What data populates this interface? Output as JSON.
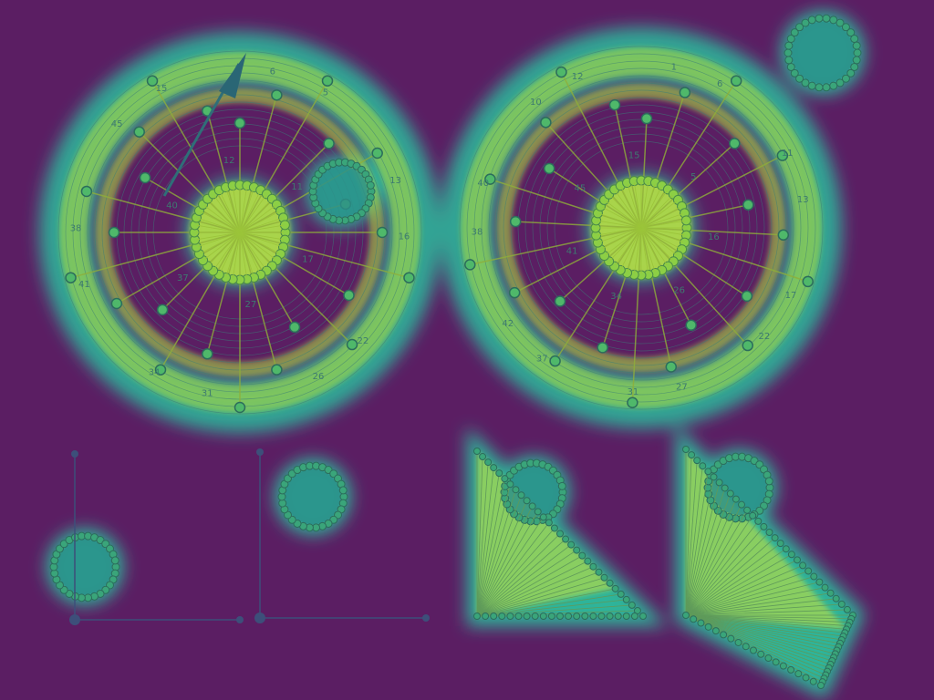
{
  "wheels": [
    {
      "labels": [
        "6",
        "5",
        "11",
        "13",
        "16",
        "17",
        "22",
        "26",
        "27",
        "31",
        "34",
        "37",
        "41",
        "38",
        "40",
        "45",
        "15",
        "12"
      ]
    },
    {
      "labels": [
        "1",
        "6",
        "5",
        "11",
        "13",
        "16",
        "17",
        "22",
        "26",
        "27",
        "31",
        "34",
        "37",
        "42",
        "41",
        "38",
        "40",
        "45",
        "10",
        "12",
        "15"
      ]
    }
  ]
}
